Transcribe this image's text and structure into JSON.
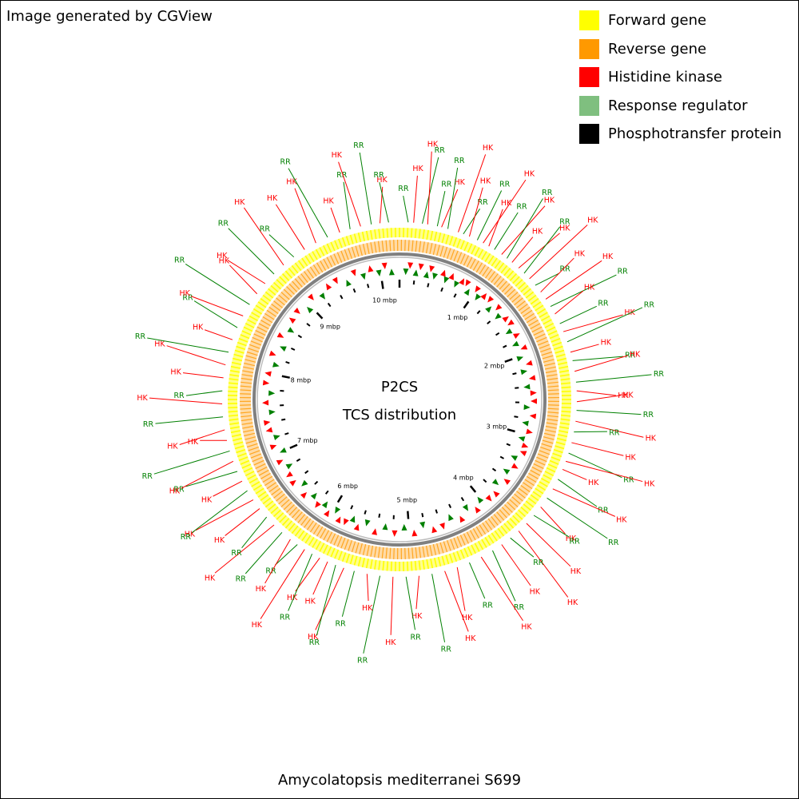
{
  "credit": "Image generated by CGView",
  "center_title": [
    "P2CS",
    "TCS distribution"
  ],
  "organism": "Amycolatopsis mediterranei S699",
  "legend": [
    {
      "label": "Forward gene",
      "color": "#ffff00"
    },
    {
      "label": "Reverse gene",
      "color": "#ff9900"
    },
    {
      "label": "Histidine kinase",
      "color": "#ff0000"
    },
    {
      "label": "Response regulator",
      "color": "#7fbf7f"
    },
    {
      "label": "Phosphotransfer protein",
      "color": "#000000"
    }
  ],
  "colors": {
    "forward": "#ffff00",
    "reverse": "#ff9900",
    "hk": "#ff0000",
    "rr": "#008000",
    "backbone": "#808080"
  },
  "tick_labels": [
    "1 mbp",
    "2 mbp",
    "3 mbp",
    "4 mbp",
    "5 mbp",
    "6 mbp",
    "7 mbp",
    "8 mbp",
    "9 mbp",
    "10 mbp"
  ],
  "genome_mbp": 10.24,
  "labels": {
    "hk": "HK",
    "rr": "RR"
  },
  "features": [
    {
      "mbp": 0.08,
      "type": "rr",
      "strand": 1
    },
    {
      "mbp": 0.13,
      "type": "hk",
      "strand": 1
    },
    {
      "mbp": 0.21,
      "type": "rr",
      "strand": -1
    },
    {
      "mbp": 0.26,
      "type": "hk",
      "strand": 1
    },
    {
      "mbp": 0.35,
      "type": "rr",
      "strand": -1
    },
    {
      "mbp": 0.39,
      "type": "hk",
      "strand": 1
    },
    {
      "mbp": 0.45,
      "type": "rr",
      "strand": 1
    },
    {
      "mbp": 0.55,
      "type": "hk",
      "strand": -1
    },
    {
      "mbp": 0.6,
      "type": "rr",
      "strand": 1
    },
    {
      "mbp": 0.66,
      "type": "hk",
      "strand": -1
    },
    {
      "mbp": 0.74,
      "type": "rr",
      "strand": 1
    },
    {
      "mbp": 0.8,
      "type": "hk",
      "strand": -1
    },
    {
      "mbp": 0.86,
      "type": "hk",
      "strand": 1
    },
    {
      "mbp": 0.92,
      "type": "rr",
      "strand": -1
    },
    {
      "mbp": 1.0,
      "type": "hk",
      "strand": 1
    },
    {
      "mbp": 1.06,
      "type": "rr",
      "strand": 1
    },
    {
      "mbp": 1.12,
      "type": "hk",
      "strand": -1
    },
    {
      "mbp": 1.2,
      "type": "hk",
      "strand": 1
    },
    {
      "mbp": 1.27,
      "type": "rr",
      "strand": -1
    },
    {
      "mbp": 1.34,
      "type": "hk",
      "strand": 1
    },
    {
      "mbp": 1.42,
      "type": "rr",
      "strand": 1
    },
    {
      "mbp": 1.5,
      "type": "hk",
      "strand": -1
    },
    {
      "mbp": 1.58,
      "type": "hk",
      "strand": 1
    },
    {
      "mbp": 1.66,
      "type": "rr",
      "strand": 1
    },
    {
      "mbp": 1.74,
      "type": "hk",
      "strand": -1
    },
    {
      "mbp": 1.84,
      "type": "rr",
      "strand": 1
    },
    {
      "mbp": 1.92,
      "type": "hk",
      "strand": 1
    },
    {
      "mbp": 2.02,
      "type": "rr",
      "strand": -1
    },
    {
      "mbp": 2.12,
      "type": "hk",
      "strand": 1
    },
    {
      "mbp": 2.2,
      "type": "rr",
      "strand": -1
    },
    {
      "mbp": 2.3,
      "type": "hk",
      "strand": 1
    },
    {
      "mbp": 2.4,
      "type": "rr",
      "strand": 1
    },
    {
      "mbp": 2.48,
      "type": "hk",
      "strand": -1
    },
    {
      "mbp": 2.58,
      "type": "hk",
      "strand": 1
    },
    {
      "mbp": 2.66,
      "type": "rr",
      "strand": -1
    },
    {
      "mbp": 2.76,
      "type": "hk",
      "strand": 1
    },
    {
      "mbp": 2.86,
      "type": "rr",
      "strand": 1
    },
    {
      "mbp": 2.96,
      "type": "hk",
      "strand": -1
    },
    {
      "mbp": 3.06,
      "type": "rr",
      "strand": 1
    },
    {
      "mbp": 3.14,
      "type": "hk",
      "strand": -1
    },
    {
      "mbp": 3.22,
      "type": "hk",
      "strand": 1
    },
    {
      "mbp": 3.32,
      "type": "rr",
      "strand": 1
    },
    {
      "mbp": 3.42,
      "type": "hk",
      "strand": -1
    },
    {
      "mbp": 3.52,
      "type": "rr",
      "strand": 1
    },
    {
      "mbp": 3.62,
      "type": "hk",
      "strand": 1
    },
    {
      "mbp": 3.72,
      "type": "rr",
      "strand": -1
    },
    {
      "mbp": 3.82,
      "type": "hk",
      "strand": 1
    },
    {
      "mbp": 3.92,
      "type": "hk",
      "strand": -1
    },
    {
      "mbp": 4.02,
      "type": "rr",
      "strand": 1
    },
    {
      "mbp": 4.12,
      "type": "hk",
      "strand": 1
    },
    {
      "mbp": 4.22,
      "type": "rr",
      "strand": -1
    },
    {
      "mbp": 4.34,
      "type": "hk",
      "strand": 1
    },
    {
      "mbp": 4.46,
      "type": "rr",
      "strand": 1
    },
    {
      "mbp": 4.58,
      "type": "hk",
      "strand": -1
    },
    {
      "mbp": 4.7,
      "type": "hk",
      "strand": 1
    },
    {
      "mbp": 4.82,
      "type": "rr",
      "strand": -1
    },
    {
      "mbp": 4.94,
      "type": "hk",
      "strand": 1
    },
    {
      "mbp": 5.06,
      "type": "rr",
      "strand": 1
    },
    {
      "mbp": 5.18,
      "type": "hk",
      "strand": -1
    },
    {
      "mbp": 5.3,
      "type": "rr",
      "strand": 1
    },
    {
      "mbp": 5.42,
      "type": "hk",
      "strand": 1
    },
    {
      "mbp": 5.54,
      "type": "rr",
      "strand": -1
    },
    {
      "mbp": 5.64,
      "type": "hk",
      "strand": 1
    },
    {
      "mbp": 5.72,
      "type": "rr",
      "strand": 1
    },
    {
      "mbp": 5.8,
      "type": "hk",
      "strand": -1
    },
    {
      "mbp": 5.88,
      "type": "hk",
      "strand": 1
    },
    {
      "mbp": 5.96,
      "type": "rr",
      "strand": -1
    },
    {
      "mbp": 6.04,
      "type": "hk",
      "strand": 1
    },
    {
      "mbp": 6.12,
      "type": "rr",
      "strand": 1
    },
    {
      "mbp": 6.2,
      "type": "hk",
      "strand": -1
    },
    {
      "mbp": 6.3,
      "type": "rr",
      "strand": 1
    },
    {
      "mbp": 6.4,
      "type": "hk",
      "strand": 1
    },
    {
      "mbp": 6.5,
      "type": "rr",
      "strand": -1
    },
    {
      "mbp": 6.6,
      "type": "hk",
      "strand": 1
    },
    {
      "mbp": 6.7,
      "type": "hk",
      "strand": -1
    },
    {
      "mbp": 6.8,
      "type": "rr",
      "strand": 1
    },
    {
      "mbp": 6.9,
      "type": "hk",
      "strand": 1
    },
    {
      "mbp": 7.0,
      "type": "rr",
      "strand": -1
    },
    {
      "mbp": 7.1,
      "type": "hk",
      "strand": 1
    },
    {
      "mbp": 7.2,
      "type": "rr",
      "strand": 1
    },
    {
      "mbp": 7.3,
      "type": "hk",
      "strand": -1
    },
    {
      "mbp": 7.4,
      "type": "hk",
      "strand": 1
    },
    {
      "mbp": 7.52,
      "type": "rr",
      "strand": 1
    },
    {
      "mbp": 7.64,
      "type": "hk",
      "strand": -1
    },
    {
      "mbp": 7.76,
      "type": "rr",
      "strand": 1
    },
    {
      "mbp": 7.88,
      "type": "hk",
      "strand": 1
    },
    {
      "mbp": 8.0,
      "type": "hk",
      "strand": -1
    },
    {
      "mbp": 8.12,
      "type": "rr",
      "strand": 1
    },
    {
      "mbp": 8.24,
      "type": "hk",
      "strand": 1
    },
    {
      "mbp": 8.36,
      "type": "rr",
      "strand": -1
    },
    {
      "mbp": 8.48,
      "type": "hk",
      "strand": 1
    },
    {
      "mbp": 8.6,
      "type": "rr",
      "strand": 1
    },
    {
      "mbp": 8.72,
      "type": "hk",
      "strand": -1
    },
    {
      "mbp": 8.84,
      "type": "hk",
      "strand": 1
    },
    {
      "mbp": 8.96,
      "type": "rr",
      "strand": -1
    },
    {
      "mbp": 9.08,
      "type": "hk",
      "strand": 1
    },
    {
      "mbp": 9.2,
      "type": "rr",
      "strand": 1
    },
    {
      "mbp": 9.32,
      "type": "hk",
      "strand": -1
    },
    {
      "mbp": 9.44,
      "type": "hk",
      "strand": 1
    },
    {
      "mbp": 9.56,
      "type": "rr",
      "strand": -1
    },
    {
      "mbp": 9.68,
      "type": "hk",
      "strand": 1
    },
    {
      "mbp": 9.78,
      "type": "rr",
      "strand": 1
    },
    {
      "mbp": 9.88,
      "type": "hk",
      "strand": -1
    },
    {
      "mbp": 9.98,
      "type": "rr",
      "strand": 1
    },
    {
      "mbp": 10.06,
      "type": "hk",
      "strand": 1
    },
    {
      "mbp": 10.14,
      "type": "rr",
      "strand": -1
    }
  ]
}
